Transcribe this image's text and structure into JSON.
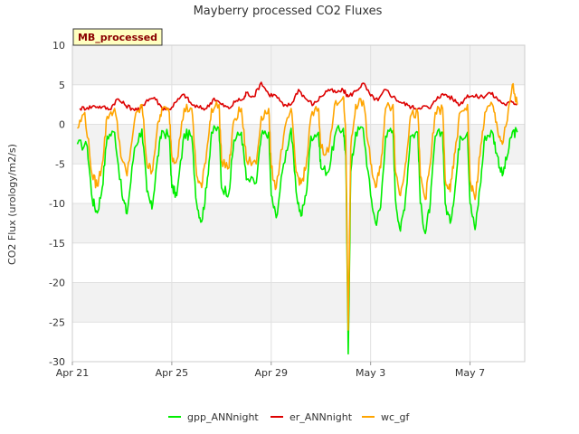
{
  "chart_data": {
    "type": "line",
    "title": "Mayberry processed CO2 Fluxes",
    "ylabel": "CO2 Flux (urology/m2/s)",
    "xlabel": "",
    "tag": "MB_processed",
    "ylim": [
      -30,
      10
    ],
    "yticks": [
      10,
      5,
      0,
      -5,
      -10,
      -15,
      -20,
      -25,
      -30
    ],
    "xlim_days": [
      0,
      18.2
    ],
    "xticks": [
      {
        "day": 0,
        "label": "Apr 21"
      },
      {
        "day": 4,
        "label": "Apr 25"
      },
      {
        "day": 8,
        "label": "Apr 29"
      },
      {
        "day": 12,
        "label": "May 3"
      },
      {
        "day": 16,
        "label": "May 7"
      }
    ],
    "legend_position": "bottom",
    "series": [
      {
        "name": "gpp_ANNnight",
        "color": "#00ee00",
        "points": [
          [
            0.2,
            -2.5
          ],
          [
            0.6,
            -2.8
          ],
          [
            0.8,
            -9.5
          ],
          [
            1.0,
            -11.2
          ],
          [
            1.2,
            -8.0
          ],
          [
            1.4,
            -1.5
          ],
          [
            1.7,
            -1.0
          ],
          [
            2.0,
            -9.0
          ],
          [
            2.2,
            -11.3
          ],
          [
            2.5,
            -3.0
          ],
          [
            2.8,
            -0.6
          ],
          [
            3.0,
            -8.5
          ],
          [
            3.2,
            -10.7
          ],
          [
            3.4,
            -5.0
          ],
          [
            3.6,
            -0.8
          ],
          [
            3.9,
            -1.5
          ],
          [
            4.0,
            -8.0
          ],
          [
            4.2,
            -9.0
          ],
          [
            4.5,
            -1.2
          ],
          [
            4.8,
            -1.5
          ],
          [
            5.0,
            -10.0
          ],
          [
            5.2,
            -12.3
          ],
          [
            5.4,
            -8.0
          ],
          [
            5.6,
            -1.0
          ],
          [
            5.9,
            -0.5
          ],
          [
            6.0,
            -8.0
          ],
          [
            6.3,
            -8.6
          ],
          [
            6.5,
            -2.0
          ],
          [
            6.8,
            -1.0
          ],
          [
            7.0,
            -7.0
          ],
          [
            7.4,
            -7.4
          ],
          [
            7.6,
            -1.5
          ],
          [
            7.9,
            -1.0
          ],
          [
            8.0,
            -9.0
          ],
          [
            8.2,
            -11.8
          ],
          [
            8.5,
            -5.0
          ],
          [
            8.8,
            -0.5
          ],
          [
            9.0,
            -8.5
          ],
          [
            9.2,
            -11.6
          ],
          [
            9.4,
            -9.0
          ],
          [
            9.6,
            -1.5
          ],
          [
            9.9,
            -1.0
          ],
          [
            10.0,
            -5.5
          ],
          [
            10.3,
            -6.0
          ],
          [
            10.6,
            -1.0
          ],
          [
            10.9,
            -0.5
          ],
          [
            11.0,
            -4.0
          ],
          [
            11.1,
            -29.0
          ],
          [
            11.2,
            -6.0
          ],
          [
            11.4,
            -1.0
          ],
          [
            11.7,
            -0.5
          ],
          [
            12.0,
            -9.0
          ],
          [
            12.2,
            -12.5
          ],
          [
            12.4,
            -10.5
          ],
          [
            12.6,
            -1.5
          ],
          [
            12.9,
            -0.8
          ],
          [
            13.0,
            -9.5
          ],
          [
            13.2,
            -13.5
          ],
          [
            13.4,
            -9.5
          ],
          [
            13.6,
            -1.5
          ],
          [
            13.9,
            -1.0
          ],
          [
            14.0,
            -10.0
          ],
          [
            14.2,
            -13.8
          ],
          [
            14.4,
            -10.0
          ],
          [
            14.6,
            -1.5
          ],
          [
            14.9,
            -1.0
          ],
          [
            15.0,
            -10.0
          ],
          [
            15.2,
            -12.5
          ],
          [
            15.4,
            -8.0
          ],
          [
            15.6,
            -1.5
          ],
          [
            15.9,
            -1.0
          ],
          [
            16.0,
            -10.0
          ],
          [
            16.2,
            -13.3
          ],
          [
            16.4,
            -8.0
          ],
          [
            16.6,
            -1.5
          ],
          [
            16.9,
            -1.0
          ],
          [
            17.1,
            -4.0
          ],
          [
            17.3,
            -6.5
          ],
          [
            17.5,
            -4.0
          ],
          [
            17.7,
            -1.0
          ],
          [
            17.9,
            -1.0
          ]
        ]
      },
      {
        "name": "er_ANNnight",
        "color": "#dd0000",
        "points": [
          [
            0.3,
            2.0
          ],
          [
            0.6,
            2.1
          ],
          [
            0.9,
            2.3
          ],
          [
            1.2,
            2.2
          ],
          [
            1.5,
            1.9
          ],
          [
            1.8,
            3.2
          ],
          [
            2.1,
            2.5
          ],
          [
            2.4,
            2.0
          ],
          [
            2.7,
            1.8
          ],
          [
            3.0,
            3.1
          ],
          [
            3.3,
            3.4
          ],
          [
            3.6,
            2.1
          ],
          [
            3.9,
            1.9
          ],
          [
            4.2,
            2.9
          ],
          [
            4.5,
            3.8
          ],
          [
            4.8,
            2.5
          ],
          [
            5.1,
            2.1
          ],
          [
            5.4,
            2.0
          ],
          [
            5.7,
            3.3
          ],
          [
            6.0,
            2.5
          ],
          [
            6.3,
            2.0
          ],
          [
            6.6,
            3.0
          ],
          [
            6.9,
            3.2
          ],
          [
            7.0,
            4.0
          ],
          [
            7.3,
            3.5
          ],
          [
            7.6,
            5.3
          ],
          [
            7.9,
            3.8
          ],
          [
            8.2,
            3.6
          ],
          [
            8.5,
            2.3
          ],
          [
            8.8,
            2.5
          ],
          [
            9.1,
            4.4
          ],
          [
            9.4,
            3.2
          ],
          [
            9.7,
            2.5
          ],
          [
            10.0,
            3.5
          ],
          [
            10.3,
            4.4
          ],
          [
            10.6,
            4.0
          ],
          [
            10.9,
            4.3
          ],
          [
            11.1,
            3.5
          ],
          [
            11.4,
            4.2
          ],
          [
            11.7,
            5.2
          ],
          [
            12.0,
            3.6
          ],
          [
            12.3,
            3.0
          ],
          [
            12.6,
            4.4
          ],
          [
            12.9,
            3.5
          ],
          [
            13.2,
            2.8
          ],
          [
            13.5,
            2.4
          ],
          [
            13.8,
            2.0
          ],
          [
            14.1,
            2.3
          ],
          [
            14.4,
            2.0
          ],
          [
            14.7,
            3.5
          ],
          [
            15.0,
            3.8
          ],
          [
            15.3,
            3.2
          ],
          [
            15.6,
            2.5
          ],
          [
            15.9,
            3.7
          ],
          [
            16.2,
            3.5
          ],
          [
            16.5,
            3.5
          ],
          [
            16.8,
            4.0
          ],
          [
            17.1,
            3.2
          ],
          [
            17.4,
            2.5
          ],
          [
            17.7,
            2.8
          ],
          [
            17.9,
            2.6
          ]
        ]
      },
      {
        "name": "wc_gf",
        "color": "#ffa500",
        "points": [
          [
            0.2,
            -0.5
          ],
          [
            0.5,
            1.5
          ],
          [
            0.8,
            -6.5
          ],
          [
            1.0,
            -7.8
          ],
          [
            1.2,
            -5.0
          ],
          [
            1.4,
            1.0
          ],
          [
            1.7,
            2.0
          ],
          [
            2.0,
            -4.5
          ],
          [
            2.2,
            -6.5
          ],
          [
            2.5,
            0.5
          ],
          [
            2.8,
            2.5
          ],
          [
            3.0,
            -5.0
          ],
          [
            3.2,
            -6.0
          ],
          [
            3.4,
            -1.0
          ],
          [
            3.6,
            2.0
          ],
          [
            3.9,
            1.5
          ],
          [
            4.0,
            -4.0
          ],
          [
            4.2,
            -4.5
          ],
          [
            4.5,
            2.0
          ],
          [
            4.8,
            2.0
          ],
          [
            5.0,
            -6.5
          ],
          [
            5.2,
            -8.0
          ],
          [
            5.4,
            -3.5
          ],
          [
            5.6,
            2.0
          ],
          [
            5.9,
            2.5
          ],
          [
            6.0,
            -4.5
          ],
          [
            6.3,
            -5.5
          ],
          [
            6.5,
            0.5
          ],
          [
            6.8,
            2.0
          ],
          [
            7.0,
            -4.5
          ],
          [
            7.4,
            -5.0
          ],
          [
            7.6,
            1.0
          ],
          [
            7.9,
            2.0
          ],
          [
            8.0,
            -5.5
          ],
          [
            8.2,
            -8.0
          ],
          [
            8.5,
            -1.5
          ],
          [
            8.8,
            2.0
          ],
          [
            9.0,
            -6.0
          ],
          [
            9.2,
            -7.5
          ],
          [
            9.4,
            -5.5
          ],
          [
            9.6,
            1.0
          ],
          [
            9.9,
            2.0
          ],
          [
            10.0,
            -3.0
          ],
          [
            10.3,
            -3.5
          ],
          [
            10.6,
            3.0
          ],
          [
            10.9,
            3.5
          ],
          [
            11.0,
            -1.5
          ],
          [
            11.1,
            -26.0
          ],
          [
            11.2,
            -3.0
          ],
          [
            11.4,
            2.5
          ],
          [
            11.7,
            3.0
          ],
          [
            12.0,
            -5.0
          ],
          [
            12.2,
            -8.0
          ],
          [
            12.4,
            -5.5
          ],
          [
            12.6,
            2.0
          ],
          [
            12.9,
            2.5
          ],
          [
            13.0,
            -6.0
          ],
          [
            13.2,
            -9.0
          ],
          [
            13.4,
            -5.0
          ],
          [
            13.6,
            1.0
          ],
          [
            13.9,
            1.5
          ],
          [
            14.0,
            -6.5
          ],
          [
            14.2,
            -9.5
          ],
          [
            14.4,
            -5.0
          ],
          [
            14.6,
            1.5
          ],
          [
            14.9,
            2.0
          ],
          [
            15.0,
            -7.0
          ],
          [
            15.2,
            -8.5
          ],
          [
            15.4,
            -3.5
          ],
          [
            15.6,
            1.5
          ],
          [
            15.9,
            2.5
          ],
          [
            16.0,
            -7.0
          ],
          [
            16.2,
            -9.5
          ],
          [
            16.4,
            -4.0
          ],
          [
            16.6,
            1.5
          ],
          [
            16.9,
            2.5
          ],
          [
            17.1,
            -0.5
          ],
          [
            17.3,
            -2.5
          ],
          [
            17.5,
            0.5
          ],
          [
            17.7,
            5.0
          ],
          [
            17.9,
            2.5
          ]
        ]
      }
    ]
  }
}
